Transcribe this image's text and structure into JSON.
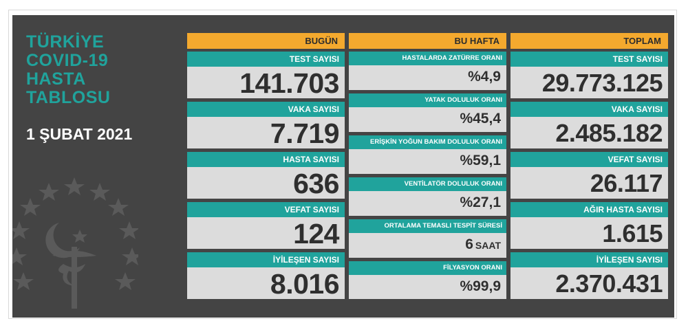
{
  "title_lines": [
    "TÜRKİYE",
    "COVID-19",
    "HASTA",
    "TABLOSU"
  ],
  "date": "1 ŞUBAT 2021",
  "columns": {
    "today": "BUGÜN",
    "week": "BU HAFTA",
    "total": "TOPLAM"
  },
  "today": [
    {
      "label": "TEST SAYISI",
      "value": "141.703"
    },
    {
      "label": "VAKA SAYISI",
      "value": "7.719"
    },
    {
      "label": "HASTA SAYISI",
      "value": "636"
    },
    {
      "label": "VEFAT SAYISI",
      "value": "124"
    },
    {
      "label": "İYİLEŞEN SAYISI",
      "value": "8.016"
    }
  ],
  "week": [
    {
      "label": "HASTALARDA ZATÜRRE ORANI",
      "value": "%4,9"
    },
    {
      "label": "YATAK DOLULUK ORANI",
      "value": "%45,4"
    },
    {
      "label": "ERİŞKİN YOĞUN BAKIM DOLULUK ORANI",
      "value": "%59,1"
    },
    {
      "label": "VENTİLATÖR DOLULUK ORANI",
      "value": "%27,1"
    },
    {
      "label": "ORTALAMA TEMASLI TESPİT SÜRESİ",
      "value": "6",
      "unit": "SAAT"
    },
    {
      "label": "FİLYASYON ORANI",
      "value": "%99,9"
    }
  ],
  "total": [
    {
      "label": "TEST SAYISI",
      "value": "29.773.125"
    },
    {
      "label": "VAKA SAYISI",
      "value": "2.485.182"
    },
    {
      "label": "VEFAT SAYISI",
      "value": "26.117"
    },
    {
      "label": "AĞIR HASTA SAYISI",
      "value": "1.615"
    },
    {
      "label": "İYİLEŞEN SAYISI",
      "value": "2.370.431"
    }
  ],
  "colors": {
    "background": "#444444",
    "accent_teal": "#20a39c",
    "header_orange": "#f4a92e",
    "card_gray": "#dcdcdc"
  },
  "icons": [
    "ministry-emblem-icon"
  ]
}
